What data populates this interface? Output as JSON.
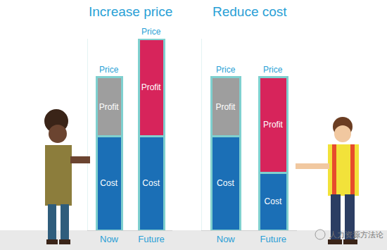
{
  "watermark": "人力资源方法论",
  "chart_data": [
    {
      "type": "bar",
      "title": "Increase price",
      "stacked": true,
      "tick_labels": "x",
      "ylim": [
        0,
        100
      ],
      "categories": [
        "Now",
        "Future"
      ],
      "series": [
        {
          "name": "Cost",
          "colors": [
            "#1b6fb6",
            "#1b6fb6"
          ],
          "values": [
            49,
            49
          ]
        },
        {
          "name": "Profit",
          "colors": [
            "#9e9e9e",
            "#d7245b"
          ],
          "values": [
            31,
            51
          ]
        }
      ],
      "annotations": [
        {
          "category": "Now",
          "text": "Price"
        },
        {
          "category": "Future",
          "text": "Price"
        }
      ]
    },
    {
      "type": "bar",
      "title": "Reduce cost",
      "stacked": true,
      "tick_labels": "x",
      "ylim": [
        0,
        100
      ],
      "categories": [
        "Now",
        "Future"
      ],
      "series": [
        {
          "name": "Cost",
          "colors": [
            "#1b6fb6",
            "#1b6fb6"
          ],
          "values": [
            49,
            30
          ]
        },
        {
          "name": "Profit",
          "colors": [
            "#9e9e9e",
            "#d7245b"
          ],
          "values": [
            31,
            50
          ]
        }
      ],
      "annotations": [
        {
          "category": "Now",
          "text": "Price"
        },
        {
          "category": "Future",
          "text": "Price"
        }
      ]
    }
  ]
}
